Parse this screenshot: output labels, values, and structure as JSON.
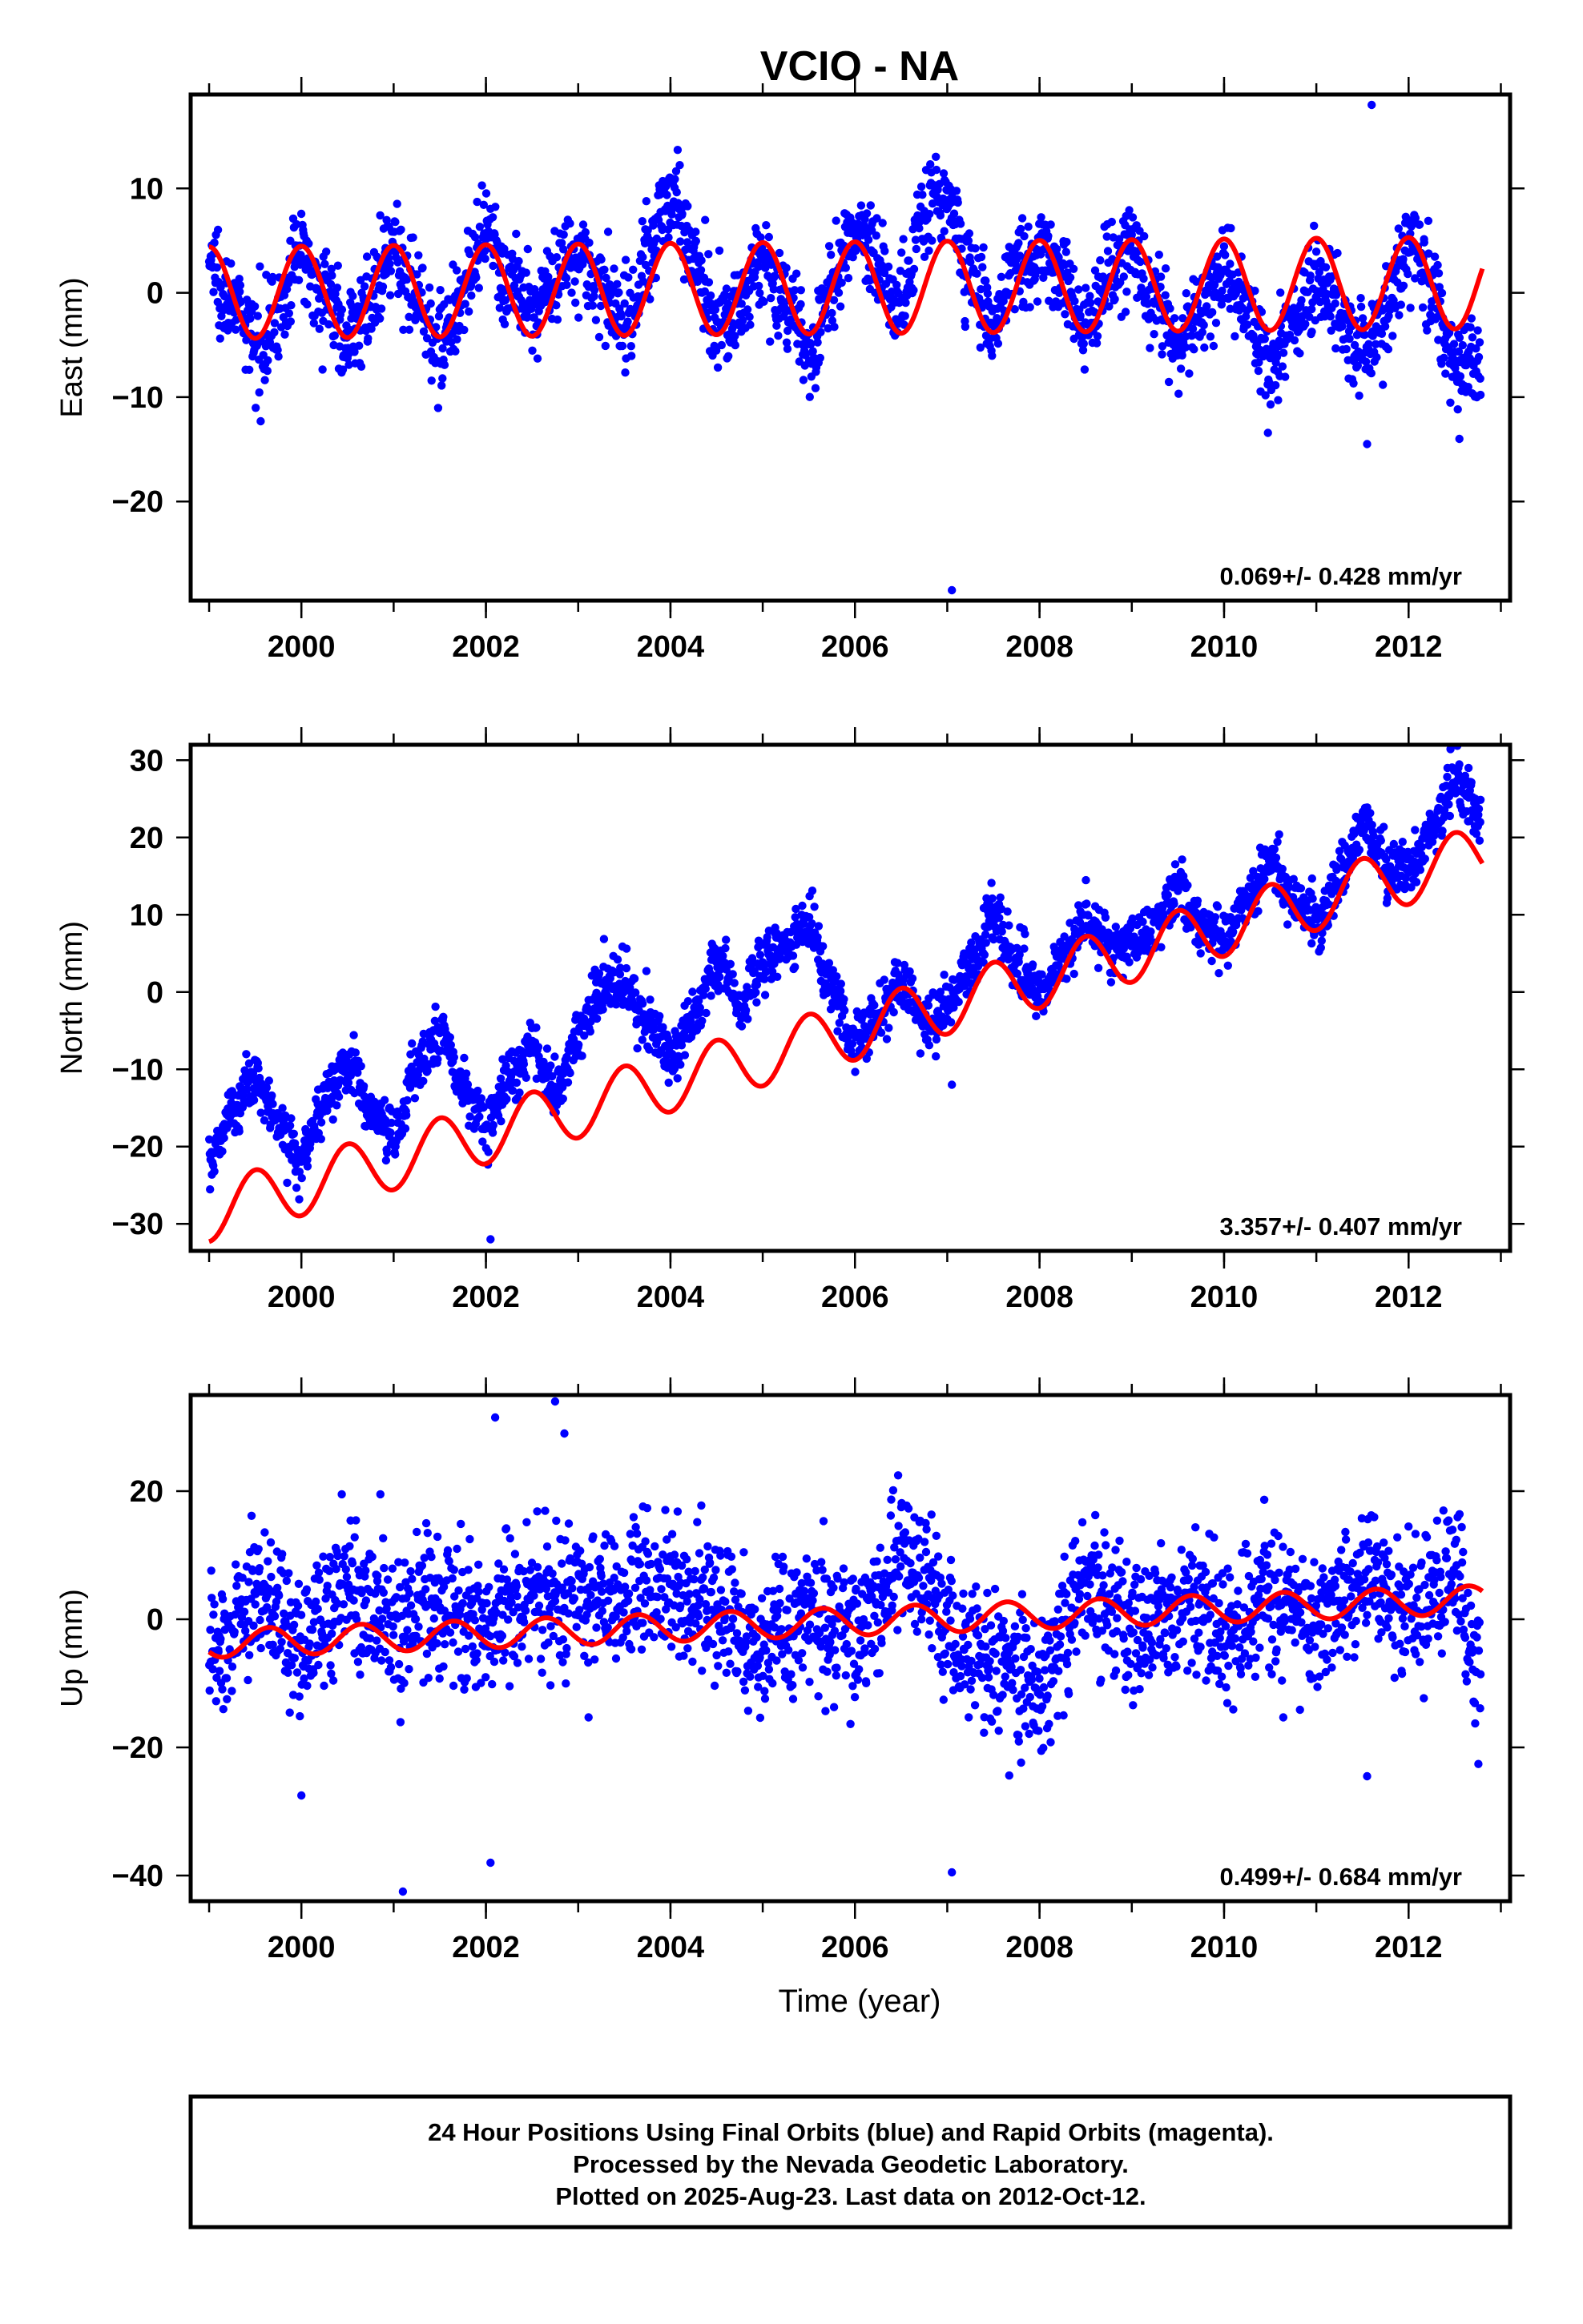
{
  "title": "VCIO - NA",
  "caption_lines": [
    "24 Hour Positions Using Final Orbits (blue) and Rapid Orbits (magenta).",
    "Processed by the Nevada Geodetic Laboratory.",
    "Plotted on 2025-Aug-23. Last data on 2012-Oct-12."
  ],
  "colors": {
    "data": "#0000ff",
    "model": "#ff0000",
    "frame": "#000000"
  },
  "chart_data": [
    {
      "type": "scatter",
      "component": "east",
      "ylabel": "East (mm)",
      "xlabel": "",
      "xlim": [
        1998.8,
        2013.1
      ],
      "ylim": [
        -29.5,
        19
      ],
      "xticks": [
        2000,
        2002,
        2004,
        2006,
        2008,
        2010,
        2012
      ],
      "yticks": [
        -20,
        -10,
        0,
        10
      ],
      "rate_label": "0.069+/- 0.428 mm/yr",
      "grid": false,
      "model": {
        "name": "",
        "offset": 0.0,
        "trend_mm_per_yr": 0.069,
        "annual_amplitude": 4.4,
        "annual_phase_peak": 0.0
      },
      "x": [
        1999.0,
        1999.25,
        1999.5,
        1999.75,
        2000.0,
        2000.25,
        2000.5,
        2000.75,
        2001.0,
        2001.25,
        2001.5,
        2001.75,
        2002.0,
        2002.25,
        2002.5,
        2002.75,
        2003.0,
        2003.25,
        2003.5,
        2003.75,
        2004.0,
        2004.25,
        2004.5,
        2004.75,
        2005.0,
        2005.25,
        2005.5,
        2005.75,
        2006.0,
        2006.25,
        2006.5,
        2006.75,
        2007.0,
        2007.25,
        2007.5,
        2007.75,
        2008.0,
        2008.25,
        2008.5,
        2008.75,
        2009.0,
        2009.25,
        2009.5,
        2009.75,
        2010.0,
        2010.25,
        2010.5,
        2010.75,
        2011.0,
        2011.25,
        2011.5,
        2011.75,
        2012.0,
        2012.25,
        2012.5,
        2012.75
      ],
      "y": [
        3,
        -1,
        -5,
        -2,
        4,
        0,
        -4,
        -1,
        4,
        0,
        -5,
        0,
        5,
        1,
        -2,
        2,
        4,
        0,
        -3,
        3,
        10,
        4,
        -3,
        -1,
        3,
        -1,
        -6,
        0,
        6,
        3,
        -1,
        8,
        9,
        2,
        -3,
        3,
        4,
        1,
        -3,
        2,
        4,
        -1,
        -5,
        -2,
        2,
        -2,
        -7,
        -3,
        2,
        -2,
        -6,
        -2,
        5,
        1,
        -7,
        -6
      ],
      "scatter": 2.2,
      "outliers": [
        [
          2011.6,
          18
        ],
        [
          2007.05,
          -28.5
        ],
        [
          2011.55,
          -14.5
        ],
        [
          2012.55,
          -14
        ]
      ]
    },
    {
      "type": "scatter",
      "component": "north",
      "ylabel": "North (mm)",
      "xlabel": "",
      "xlim": [
        1998.8,
        2013.1
      ],
      "ylim": [
        -33.5,
        32
      ],
      "xticks": [
        2000,
        2002,
        2004,
        2006,
        2008,
        2010,
        2012
      ],
      "yticks": [
        -30,
        -20,
        -10,
        0,
        10,
        20,
        30
      ],
      "rate_label": "3.357+/- 0.407 mm/yr",
      "grid": false,
      "model": {
        "name": "",
        "offset": -28.5,
        "trend_mm_per_yr": 3.357,
        "annual_amplitude": 3.8,
        "annual_phase_peak": 0.5
      },
      "x": [
        1999.0,
        1999.25,
        1999.5,
        1999.75,
        2000.0,
        2000.25,
        2000.5,
        2000.75,
        2001.0,
        2001.25,
        2001.5,
        2001.75,
        2002.0,
        2002.25,
        2002.5,
        2002.75,
        2003.0,
        2003.25,
        2003.5,
        2003.75,
        2004.0,
        2004.25,
        2004.5,
        2004.75,
        2005.0,
        2005.25,
        2005.5,
        2005.75,
        2006.0,
        2006.25,
        2006.5,
        2006.75,
        2007.0,
        2007.25,
        2007.5,
        2007.75,
        2008.0,
        2008.25,
        2008.5,
        2008.75,
        2009.0,
        2009.25,
        2009.5,
        2009.75,
        2010.0,
        2010.25,
        2010.5,
        2010.75,
        2011.0,
        2011.25,
        2011.5,
        2011.75,
        2012.0,
        2012.25,
        2012.5,
        2012.75
      ],
      "y": [
        -22,
        -15,
        -11,
        -17,
        -21,
        -14,
        -9,
        -15,
        -19,
        -10,
        -5,
        -12,
        -17,
        -11,
        -7,
        -13,
        -6,
        0,
        1,
        -4,
        -8,
        -3,
        4,
        -2,
        4,
        6,
        9,
        0,
        -6,
        -3,
        1,
        -4,
        -2,
        3,
        10,
        4,
        0,
        4,
        9,
        6,
        6,
        9,
        14,
        9,
        7,
        12,
        17,
        12,
        9,
        15,
        22,
        17,
        16,
        21,
        27,
        24
      ],
      "scatter": 1.8,
      "outliers": [
        [
          2002.05,
          -32
        ],
        [
          2007.05,
          -12
        ]
      ]
    },
    {
      "type": "scatter",
      "component": "up",
      "ylabel": "Up (mm)",
      "xlabel": "Time (year)",
      "xlim": [
        1998.8,
        2013.1
      ],
      "ylim": [
        -44,
        35
      ],
      "xticks": [
        2000,
        2002,
        2004,
        2006,
        2008,
        2010,
        2012
      ],
      "yticks": [
        -40,
        -20,
        0,
        20
      ],
      "rate_label": "0.499+/- 0.684 mm/yr",
      "grid": false,
      "model": {
        "name": "",
        "offset": -3.8,
        "trend_mm_per_yr": 0.499,
        "annual_amplitude": 2.2,
        "annual_phase_peak": 0.65
      },
      "x": [
        1999.0,
        1999.25,
        1999.5,
        1999.75,
        2000.0,
        2000.25,
        2000.5,
        2000.75,
        2001.0,
        2001.25,
        2001.5,
        2001.75,
        2002.0,
        2002.25,
        2002.5,
        2002.75,
        2003.0,
        2003.25,
        2003.5,
        2003.75,
        2004.0,
        2004.25,
        2004.5,
        2004.75,
        2005.0,
        2005.25,
        2005.5,
        2005.75,
        2006.0,
        2006.25,
        2006.5,
        2006.75,
        2007.0,
        2007.25,
        2007.5,
        2007.75,
        2008.0,
        2008.25,
        2008.5,
        2008.75,
        2009.0,
        2009.25,
        2009.5,
        2009.75,
        2010.0,
        2010.25,
        2010.5,
        2010.75,
        2011.0,
        2011.25,
        2011.5,
        2011.75,
        2012.0,
        2012.25,
        2012.5,
        2012.75
      ],
      "y": [
        -4,
        -2,
        5,
        0,
        -4,
        0,
        6,
        2,
        -2,
        2,
        3,
        1,
        -2,
        1,
        5,
        4,
        4,
        2,
        4,
        5,
        5,
        3,
        1,
        -2,
        -6,
        -2,
        2,
        -1,
        -3,
        2,
        10,
        6,
        -2,
        -4,
        -6,
        -9,
        -10,
        -2,
        5,
        1,
        -3,
        -1,
        2,
        1,
        -3,
        0,
        4,
        3,
        -1,
        3,
        6,
        4,
        2,
        4,
        7,
        -8
      ],
      "scatter": 5.5,
      "outliers": [
        [
          2002.1,
          31.5
        ],
        [
          2002.75,
          34
        ],
        [
          2002.85,
          29
        ],
        [
          2000.0,
          -27.5
        ],
        [
          2001.1,
          -42.5
        ],
        [
          2002.05,
          -38
        ],
        [
          2007.05,
          -39.5
        ],
        [
          2011.55,
          -24.5
        ]
      ]
    }
  ]
}
